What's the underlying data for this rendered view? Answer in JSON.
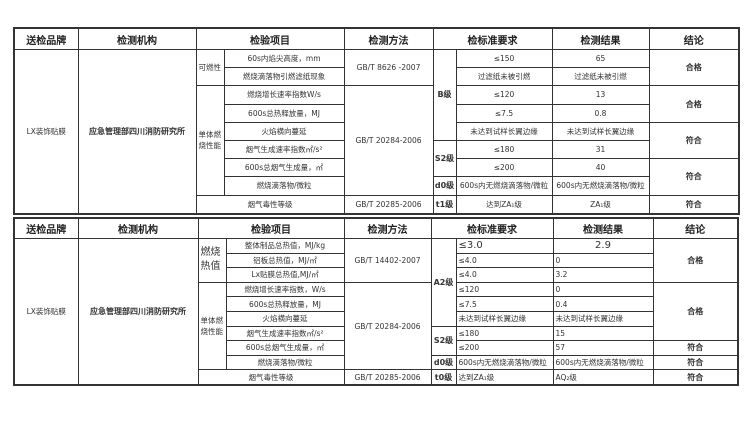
{
  "headers": [
    "送检品牌",
    "检测机构",
    "检验项目",
    "检测方法",
    "检标准要求",
    "检测结果",
    "结论"
  ],
  "t1": {
    "brand": "LX装饰贴膜",
    "org": "应急管理部四川消防研究所",
    "group1": "可燃性",
    "group2": "单体燃烧性能",
    "items": [
      "60s内焰尖高度，mm",
      "燃烧滴落物引燃滤纸现象",
      "燃烧增长速率指数W/s",
      "600s总热释放量，MJ",
      "火焰横向蔓延",
      "烟气生成速率指数㎡/s²",
      "600s总烟气生成量，㎡",
      "燃烧滴落物/微粒",
      "烟气毒性等级"
    ],
    "methods": [
      "GB/T 8626 -2007",
      "GB/T 20284-2006",
      "GB/T 20285-2006"
    ],
    "levels": [
      "B级",
      "S2级",
      "d0级",
      "t1级"
    ],
    "requirements": [
      "≤150",
      "过滤纸未被引燃",
      "≤120",
      "≤7.5",
      "未达到试样长翼边缘",
      "≤180",
      "≤200",
      "600s内无燃烧滴落物/微粒",
      "达到ZA₁级"
    ],
    "results": [
      "65",
      "过滤纸未被引燃",
      "13",
      "0.8",
      "未达到试样长翼边缘",
      "31",
      "40",
      "600s内无燃烧滴落物/微粒",
      "ZA₁级"
    ],
    "conclusions": [
      "合格",
      "合格",
      "符合",
      "符合",
      "符合"
    ]
  },
  "t2": {
    "brand": "LX装饰贴膜",
    "org": "应急管理部四川消防研究所",
    "group1": "燃烧热值",
    "group2": "单体燃烧性能",
    "items": [
      "整体制品总热值，MJ/kg",
      "铝板总热值，MJ/㎡",
      "Lx贴膜总热值,MJ/㎡",
      "燃烧增长速率指数，W/s",
      "600s总热释放量，MJ",
      "火焰横向蔓延",
      "烟气生成速率指数㎡/s²",
      "600s总烟气生成量，㎡",
      "燃烧滴落物/微粒",
      "烟气毒性等级"
    ],
    "methods": [
      "GB/T 14402-2007",
      "GB/T 20284-2006",
      "GB/T 20285-2006"
    ],
    "levels": [
      "A2级",
      "S2级",
      "d0级",
      "t0级"
    ],
    "requirements": [
      "≤3.0",
      "≤4.0",
      "≤4.0",
      "≤120",
      "≤7.5",
      "未达到试样长翼边缘",
      "≤180",
      "≤200",
      "600s内无燃烧滴落物/微粒",
      "达到ZA₁级"
    ],
    "results": [
      "2.9",
      "0",
      "3.2",
      "0",
      "0.4",
      "未达到试样长翼边缘",
      "15",
      "57",
      "600s内无燃烧滴落物/微粒",
      "AQ₂级"
    ],
    "conclusions": [
      "合格",
      "合格",
      "符合",
      "符合",
      "符合"
    ]
  }
}
